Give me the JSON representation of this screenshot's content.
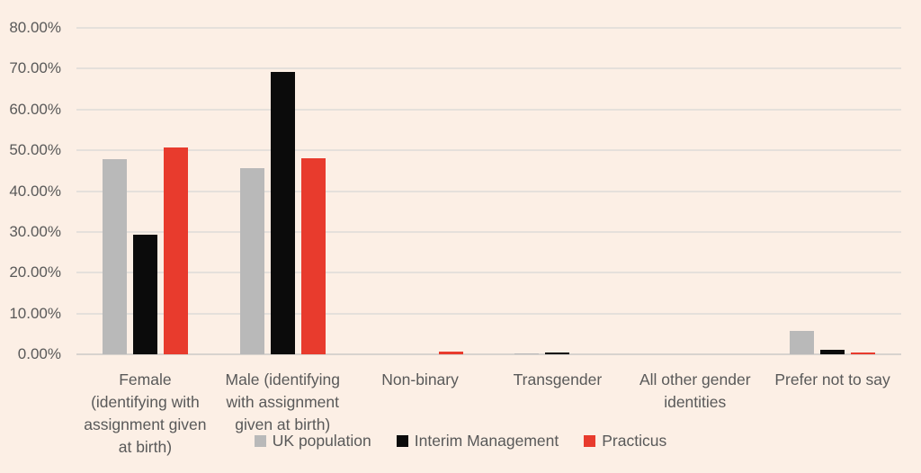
{
  "chart_data": {
    "type": "bar",
    "title": "",
    "xlabel": "",
    "ylabel": "",
    "categories": [
      "Female\n(identifying with\nassignment given\nat birth)",
      "Male (identifying\nwith assignment\ngiven at birth)",
      "Non-binary",
      "Transgender",
      "All other gender\nidentities",
      "Prefer not to say"
    ],
    "series": [
      {
        "name": "UK population",
        "color": "#b9b9b9",
        "values": [
          47.8,
          45.7,
          0,
          0.2,
          0,
          5.8
        ]
      },
      {
        "name": "Interim Management",
        "color": "#0b0b0b",
        "values": [
          29.4,
          69.2,
          0,
          0.4,
          0,
          1.0
        ]
      },
      {
        "name": "Practicus",
        "color": "#e83b2d",
        "values": [
          50.7,
          48.0,
          0.6,
          0,
          0,
          0.5
        ]
      }
    ],
    "ylim": [
      0,
      80
    ],
    "y_ticks": [
      {
        "value": 0,
        "label": "0.00%"
      },
      {
        "value": 10,
        "label": "10.00%"
      },
      {
        "value": 20,
        "label": "20.00%"
      },
      {
        "value": 30,
        "label": "30.00%"
      },
      {
        "value": 40,
        "label": "40.00%"
      },
      {
        "value": 50,
        "label": "50.00%"
      },
      {
        "value": 60,
        "label": "60.00%"
      },
      {
        "value": 70,
        "label": "70.00%"
      },
      {
        "value": 80,
        "label": "80.00%"
      }
    ],
    "grid": true,
    "legend_position": "bottom"
  },
  "colors": {
    "background": "#fcefe5",
    "gridline": "#e5e0db",
    "axis": "#d8d3ce",
    "text": "#595959"
  }
}
